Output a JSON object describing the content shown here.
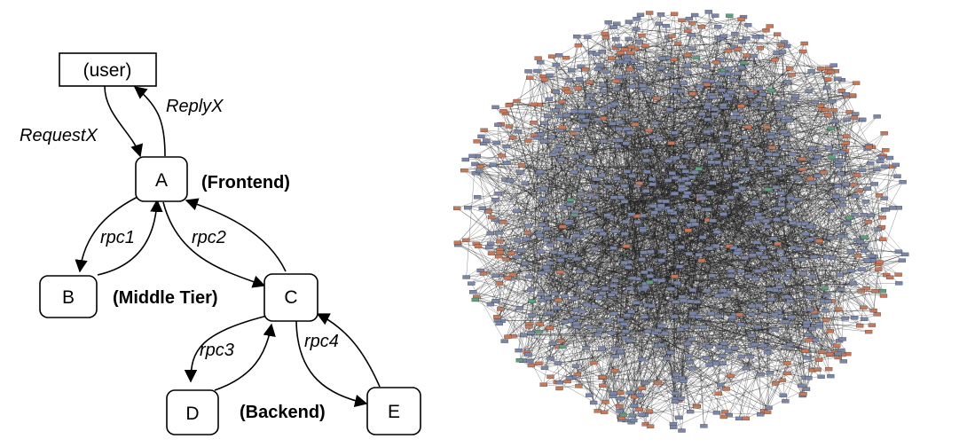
{
  "rpc_tree": {
    "nodes": [
      {
        "id": "user",
        "label": "(user)"
      },
      {
        "id": "A",
        "label": "A"
      },
      {
        "id": "B",
        "label": "B"
      },
      {
        "id": "C",
        "label": "C"
      },
      {
        "id": "D",
        "label": "D"
      },
      {
        "id": "E",
        "label": "E"
      }
    ],
    "edge_labels": {
      "request": "RequestX",
      "reply": "ReplyX",
      "rpc1": "rpc1",
      "rpc2": "rpc2",
      "rpc3": "rpc3",
      "rpc4": "rpc4"
    },
    "tiers": {
      "frontend": "(Frontend)",
      "middle": "(Middle Tier)",
      "backend": "(Backend)"
    }
  },
  "service_graph": {
    "colors": {
      "primary": "#7b86a8",
      "secondary": "#c6785a",
      "accent": "#5f9e7f",
      "edge": "#1a1a1a"
    }
  }
}
